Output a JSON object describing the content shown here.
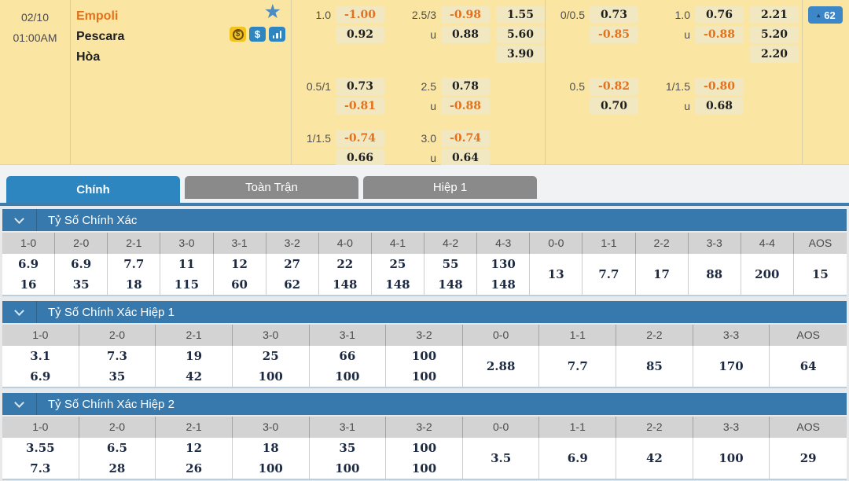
{
  "theme": {
    "panel_yellow": "#fbe5a2",
    "odds_cell_tan": "#f1e7c1",
    "negative_orange": "#e4711c",
    "accent_blue": "#2e86c1",
    "section_header_blue": "#3779ad",
    "inactive_tab_gray": "#8a8a8a",
    "table_header_gray": "#d3d3d3",
    "badge_blue": "#3d87c9",
    "star_blue": "#4a8cc3",
    "icon_yellow": "#f3c31c",
    "bottom_bar_blue": "#2c5f8a"
  },
  "icons": {
    "star": "★",
    "dollar": "$",
    "chart": "bar-chart"
  },
  "match": {
    "date": "02/10",
    "time": "01:00AM",
    "home": "Empoli",
    "away": "Pescara",
    "draw": "Hòa",
    "more_arrow": "▲",
    "more_count": "62"
  },
  "odds": {
    "u_label": "u",
    "group1": {
      "blocks": [
        {
          "hdp_line": "1.0",
          "hdp_a": "-1.00",
          "hdp_b": "0.92",
          "ou_line": "2.5/3",
          "ou_a": "-0.98",
          "ou_b": "0.88",
          "x12": [
            "1.55",
            "5.60",
            "3.90"
          ]
        },
        {
          "hdp_line": "0.5/1",
          "hdp_a": "0.73",
          "hdp_b": "-0.81",
          "ou_line": "2.5",
          "ou_a": "0.78",
          "ou_b": "-0.88"
        },
        {
          "hdp_line": "1/1.5",
          "hdp_a": "-0.74",
          "hdp_b": "0.66",
          "ou_line": "3.0",
          "ou_a": "-0.74",
          "ou_b": "0.64"
        }
      ]
    },
    "group2": {
      "blocks": [
        {
          "hdp_line": "0/0.5",
          "hdp_a": "0.73",
          "hdp_b": "-0.85",
          "ou_line": "1.0",
          "ou_a": "0.76",
          "ou_b": "-0.88",
          "x12": [
            "2.21",
            "5.20",
            "2.20"
          ]
        },
        {
          "hdp_line": "0.5",
          "hdp_a": "-0.82",
          "hdp_b": "0.70",
          "ou_line": "1/1.5",
          "ou_a": "-0.80",
          "ou_b": "0.68"
        }
      ]
    }
  },
  "tabs": [
    {
      "label": "Chính",
      "active": true
    },
    {
      "label": "Toàn Trận",
      "active": false
    },
    {
      "label": "Hiệp 1",
      "active": false
    }
  ],
  "tables": [
    {
      "title": "Tỷ Số Chính Xác",
      "columns": [
        "1-0",
        "2-0",
        "2-1",
        "3-0",
        "3-1",
        "3-2",
        "4-0",
        "4-1",
        "4-2",
        "4-3",
        "0-0",
        "1-1",
        "2-2",
        "3-3",
        "4-4",
        "AOS"
      ],
      "values": [
        [
          "6.9",
          "16"
        ],
        [
          "6.9",
          "35"
        ],
        [
          "7.7",
          "18"
        ],
        [
          "11",
          "115"
        ],
        [
          "12",
          "60"
        ],
        [
          "27",
          "62"
        ],
        [
          "22",
          "148"
        ],
        [
          "25",
          "148"
        ],
        [
          "55",
          "148"
        ],
        [
          "130",
          "148"
        ],
        [
          "13"
        ],
        [
          "7.7"
        ],
        [
          "17"
        ],
        [
          "88"
        ],
        [
          "200"
        ],
        [
          "15"
        ]
      ]
    },
    {
      "title": "Tỷ Số Chính Xác Hiệp 1",
      "columns": [
        "1-0",
        "2-0",
        "2-1",
        "3-0",
        "3-1",
        "3-2",
        "0-0",
        "1-1",
        "2-2",
        "3-3",
        "AOS"
      ],
      "values": [
        [
          "3.1",
          "6.9"
        ],
        [
          "7.3",
          "35"
        ],
        [
          "19",
          "42"
        ],
        [
          "25",
          "100"
        ],
        [
          "66",
          "100"
        ],
        [
          "100",
          "100"
        ],
        [
          "2.88"
        ],
        [
          "7.7"
        ],
        [
          "85"
        ],
        [
          "170"
        ],
        [
          "64"
        ]
      ]
    },
    {
      "title": "Tỷ Số Chính Xác Hiệp 2",
      "columns": [
        "1-0",
        "2-0",
        "2-1",
        "3-0",
        "3-1",
        "3-2",
        "0-0",
        "1-1",
        "2-2",
        "3-3",
        "AOS"
      ],
      "values": [
        [
          "3.55",
          "7.3"
        ],
        [
          "6.5",
          "28"
        ],
        [
          "12",
          "26"
        ],
        [
          "18",
          "100"
        ],
        [
          "35",
          "100"
        ],
        [
          "100",
          "100"
        ],
        [
          "3.5"
        ],
        [
          "6.9"
        ],
        [
          "42"
        ],
        [
          "100"
        ],
        [
          "29"
        ]
      ]
    }
  ]
}
